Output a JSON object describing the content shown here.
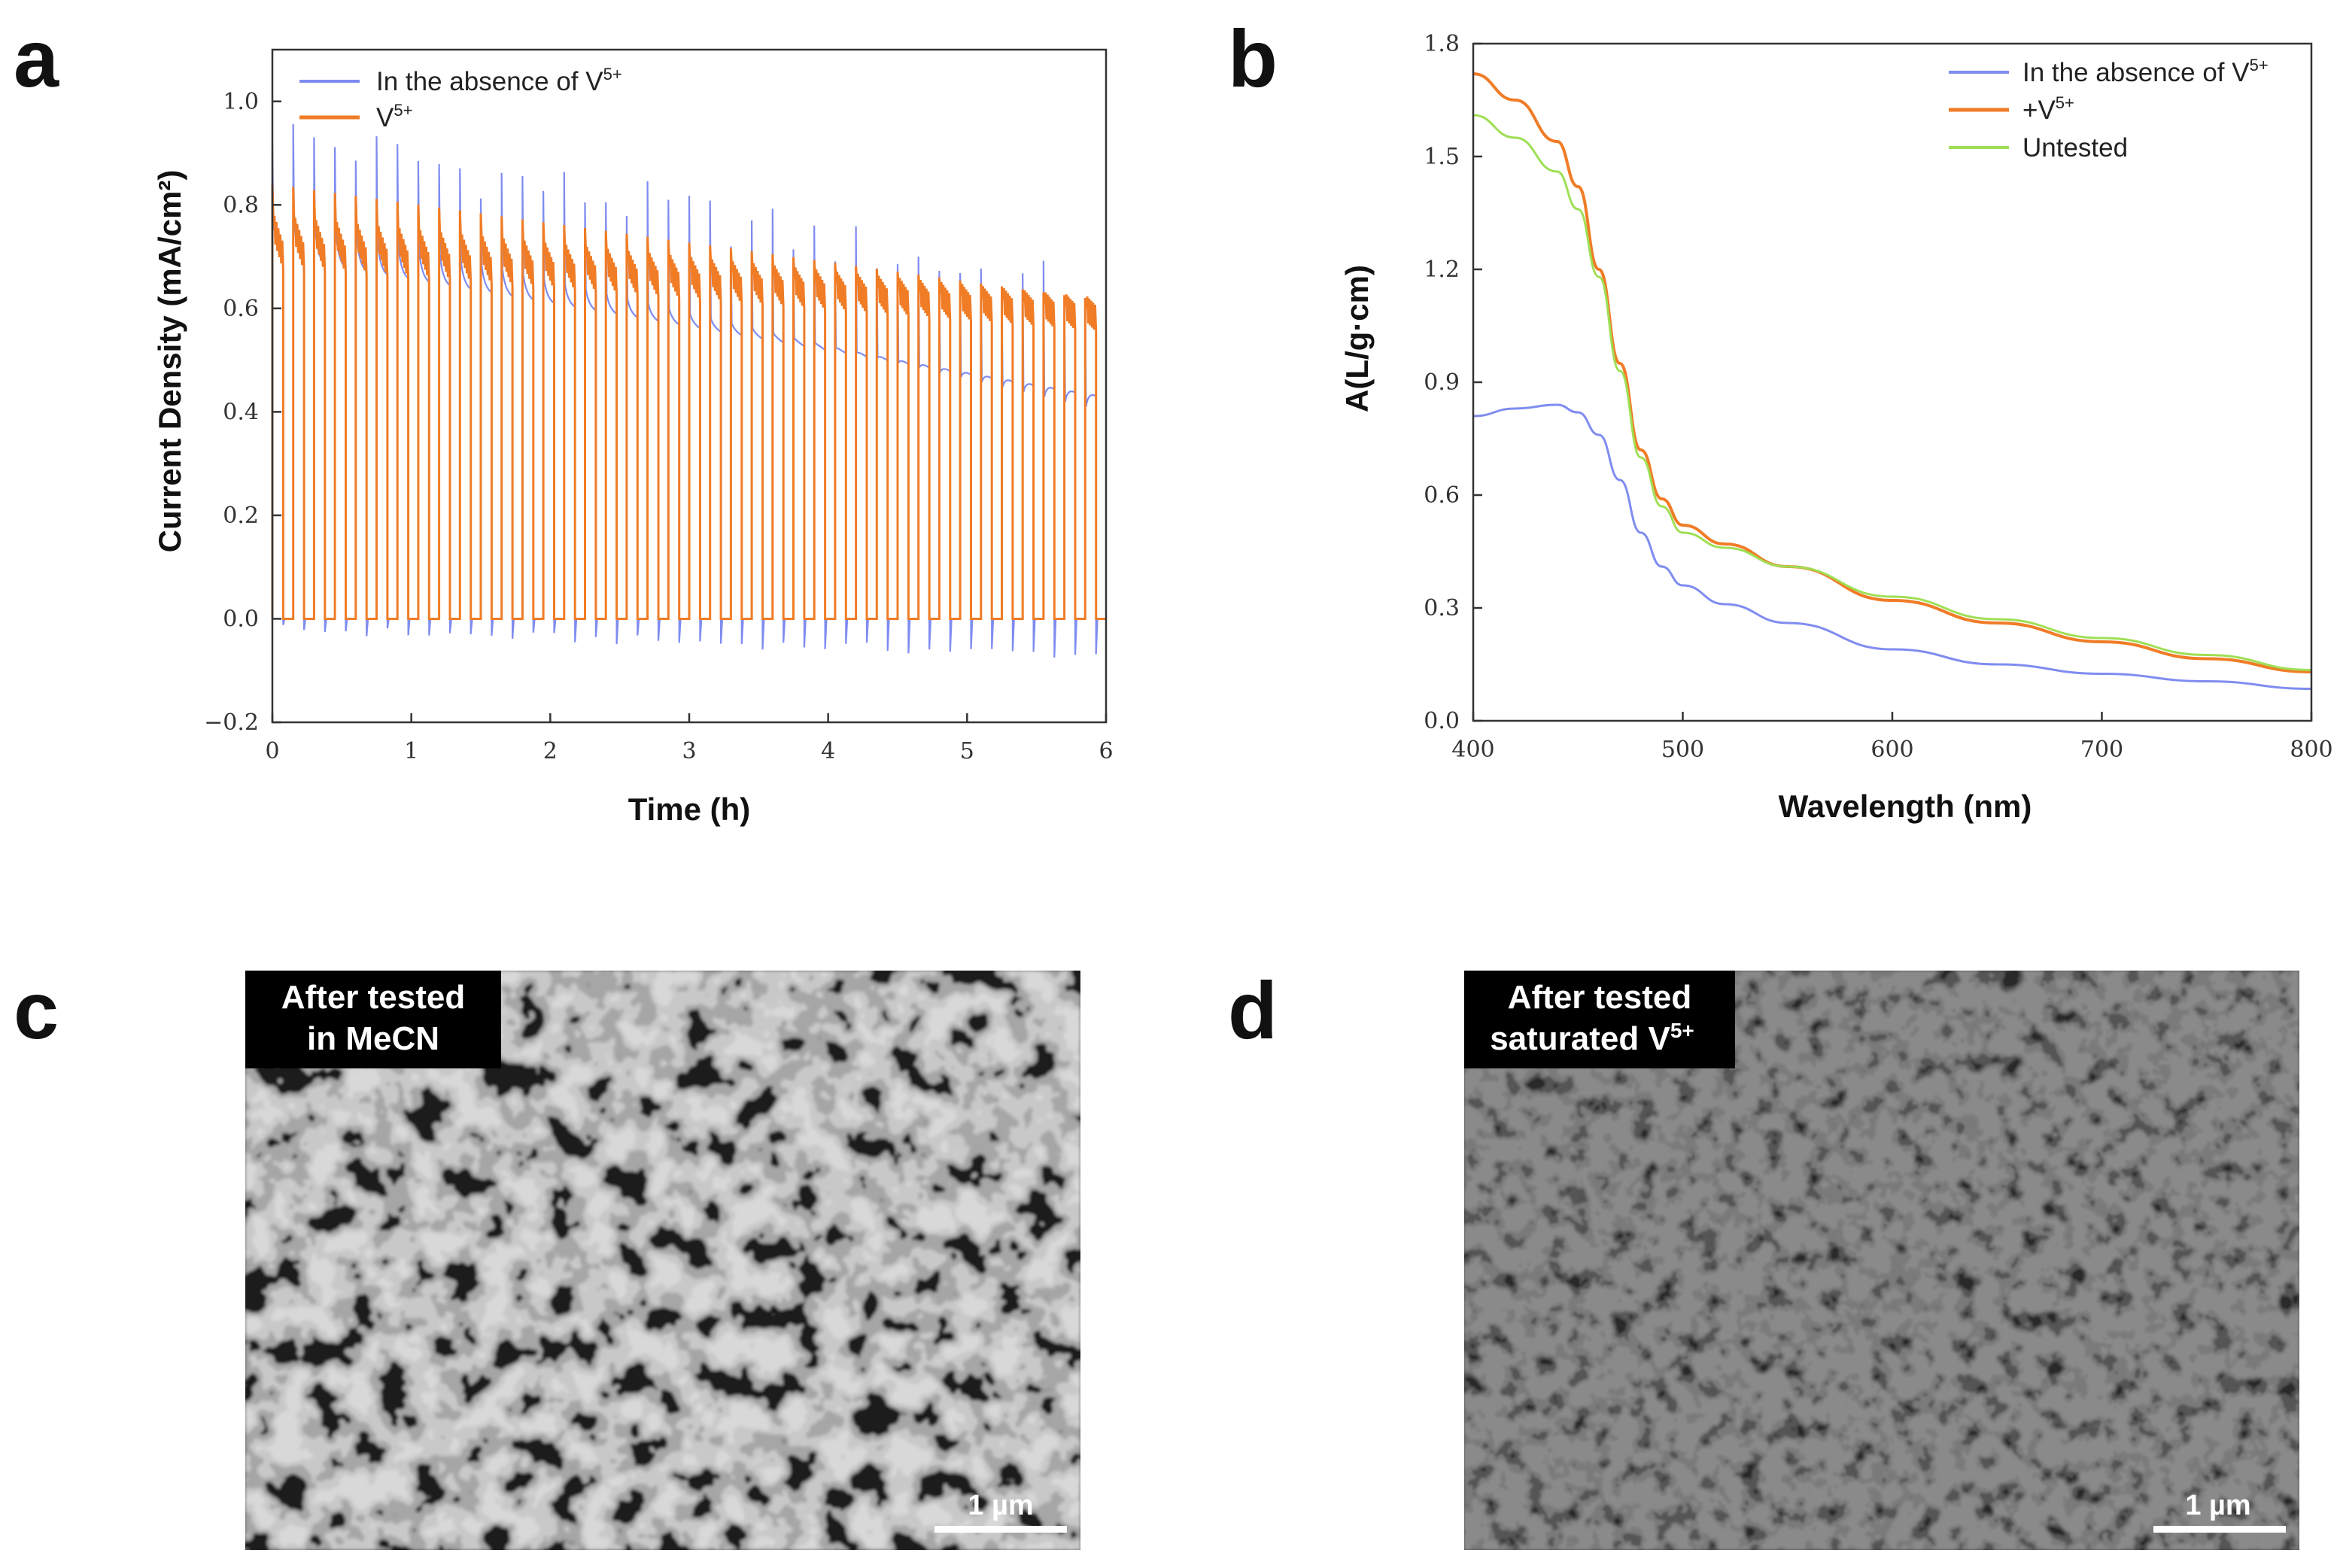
{
  "colors": {
    "absence": "#7f8cf0",
    "v5": "#f07c26",
    "untested": "#9fdf55",
    "axis": "#333333"
  },
  "chart_data": [
    {
      "panel": "a",
      "type": "line",
      "xlabel": "Time (h)",
      "ylabel": "Current Density (mA/cm²)",
      "xlim": [
        0,
        6
      ],
      "ylim": [
        -0.2,
        1.1
      ],
      "xticks": [
        "0",
        "1",
        "2",
        "3",
        "4",
        "5",
        "6"
      ],
      "yticks": [
        "-0.2",
        "0.0",
        "0.2",
        "0.4",
        "0.6",
        "0.8",
        "1.0"
      ],
      "xtick_values": [
        0,
        1,
        2,
        3,
        4,
        5,
        6
      ],
      "ytick_values": [
        -0.2,
        0.0,
        0.2,
        0.4,
        0.6,
        0.8,
        1.0
      ],
      "legend": "top-left",
      "cycles": 40,
      "cycle_period_h": 0.15,
      "series": [
        {
          "name": "In the absence of V",
          "sup": "5+",
          "color_key": "absence",
          "light_on_start": [
            0.78,
            0.41
          ],
          "light_on_end": [
            0.7,
            0.43
          ],
          "spike_peak": [
            0.94,
            0.63
          ],
          "off_dip": [
            -0.02,
            -0.07
          ]
        },
        {
          "name": "V",
          "sup": "5+",
          "color_key": "v5",
          "light_on_start": [
            0.76,
            0.6
          ],
          "light_on_end": [
            0.7,
            0.58
          ],
          "spike_peak": [
            0.84,
            0.62
          ],
          "off_value": 0.0
        }
      ]
    },
    {
      "panel": "b",
      "type": "line",
      "xlabel": "Wavelength (nm)",
      "ylabel": "A(L/g·cm)",
      "xlim": [
        400,
        800
      ],
      "ylim": [
        0,
        1.8
      ],
      "xticks": [
        "400",
        "500",
        "600",
        "700",
        "800"
      ],
      "yticks": [
        "0.0",
        "0.3",
        "0.6",
        "0.9",
        "1.2",
        "1.5",
        "1.8"
      ],
      "xtick_values": [
        400,
        500,
        600,
        700,
        800
      ],
      "ytick_values": [
        0.0,
        0.3,
        0.6,
        0.9,
        1.2,
        1.5,
        1.8
      ],
      "legend": "top-right",
      "series": [
        {
          "name": "In the absence of V",
          "sup": "5+",
          "color_key": "absence",
          "x": [
            400,
            420,
            440,
            450,
            460,
            470,
            480,
            490,
            500,
            520,
            550,
            600,
            650,
            700,
            750,
            800
          ],
          "y": [
            0.81,
            0.83,
            0.84,
            0.82,
            0.76,
            0.64,
            0.5,
            0.41,
            0.36,
            0.31,
            0.26,
            0.19,
            0.15,
            0.125,
            0.105,
            0.085
          ]
        },
        {
          "name": "+V",
          "sup": "5+",
          "color_key": "v5",
          "x": [
            400,
            420,
            440,
            450,
            460,
            470,
            480,
            490,
            500,
            520,
            550,
            600,
            650,
            700,
            750,
            800
          ],
          "y": [
            1.72,
            1.65,
            1.54,
            1.42,
            1.2,
            0.95,
            0.72,
            0.59,
            0.52,
            0.47,
            0.41,
            0.32,
            0.26,
            0.21,
            0.165,
            0.13
          ]
        },
        {
          "name": "Untested",
          "color_key": "untested",
          "x": [
            400,
            420,
            440,
            450,
            460,
            470,
            480,
            490,
            500,
            520,
            550,
            600,
            650,
            700,
            750,
            800
          ],
          "y": [
            1.61,
            1.55,
            1.46,
            1.36,
            1.18,
            0.93,
            0.7,
            0.57,
            0.5,
            0.46,
            0.41,
            0.33,
            0.27,
            0.22,
            0.175,
            0.135
          ]
        }
      ]
    }
  ],
  "panels": {
    "a": {
      "letter": "a"
    },
    "b": {
      "letter": "b"
    },
    "c": {
      "letter": "c",
      "label_line1": "After tested",
      "label_line2": "in MeCN",
      "scale": "1 µm"
    },
    "d": {
      "letter": "d",
      "label_line1": "After tested",
      "label_line2": "saturated V",
      "label_sup": "5+",
      "scale": "1 µm"
    }
  }
}
